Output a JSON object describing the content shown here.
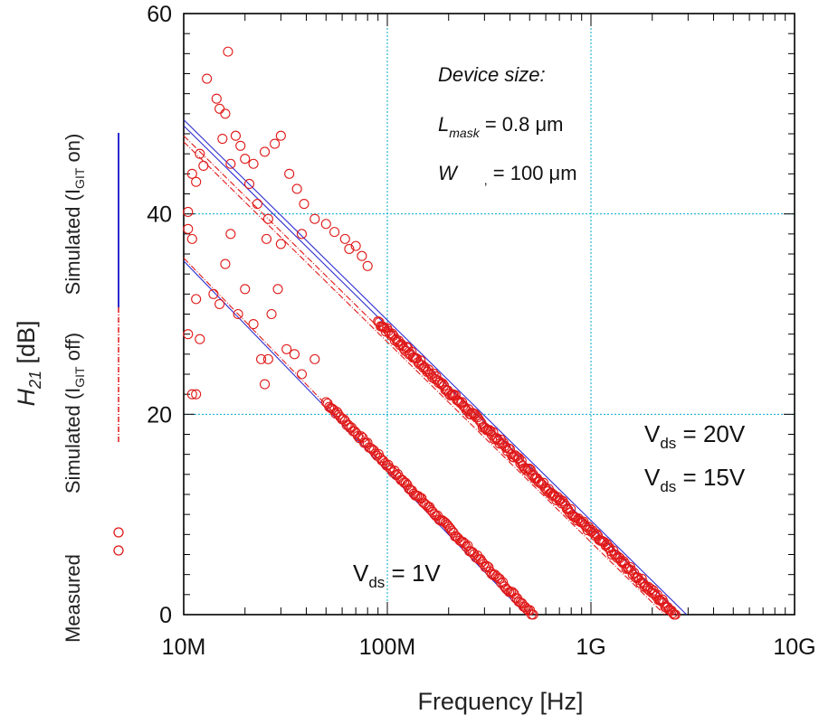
{
  "chart_data": {
    "type": "scatter",
    "x_scale": "log",
    "xlim": [
      "10M",
      "10G"
    ],
    "ylim": [
      0,
      60
    ],
    "grid": true,
    "xlabel": "Frequency [Hz]",
    "ylabel_main": "H",
    "ylabel_sub": "21",
    "ylabel_unit": "[dB]",
    "x_ticks": [
      {
        "label": "10M",
        "value": 10000000.0
      },
      {
        "label": "100M",
        "value": 100000000.0
      },
      {
        "label": "1G",
        "value": 1000000000.0
      },
      {
        "label": "10G",
        "value": 10000000000.0
      }
    ],
    "y_ticks": [
      0,
      20,
      40,
      60
    ],
    "legend": {
      "placement": "left-rotated",
      "simulated_on_prefix": "Simulated  (I",
      "simulated_on_sub": "GIT",
      "simulated_on_suffix": " on)",
      "simulated_off_prefix": "Simulated  (I",
      "simulated_off_sub": "GIT",
      "simulated_off_suffix": " off)",
      "measured": "Measured"
    },
    "annotations": {
      "device_size": "Device size:",
      "lmask_main": "L",
      "lmask_sub": "mask",
      "lmask_value": " = 0.8 μm",
      "w_main": "W",
      "w_sub": ",",
      "w_value": " = 100 μm",
      "vds20_main": "V",
      "vds20_sub": "ds",
      "vds20_value": " = 20V",
      "vds15_main": "V",
      "vds15_sub": "ds",
      "vds15_value": " = 15V",
      "vds1_main": "V",
      "vds1_sub": "ds",
      "vds1_value": " = 1V"
    },
    "colors": {
      "simulated_on": "#2b2bd0",
      "simulated_off": "#e01818",
      "measured": "#e01818",
      "grid": "#00aacc"
    },
    "series": [
      {
        "group": "Vds = 20V",
        "kind": "simulated_on",
        "x": [
          10000000.0,
          2950000000.0
        ],
        "y": [
          49.4,
          0
        ]
      },
      {
        "group": "Vds = 15V",
        "kind": "simulated_on",
        "x": [
          10000000.0,
          2740000000.0
        ],
        "y": [
          48.8,
          0
        ]
      },
      {
        "group": "Vds = 20V",
        "kind": "simulated_off",
        "x": [
          10000000.0,
          2450000000.0
        ],
        "y": [
          47.8,
          0
        ]
      },
      {
        "group": "Vds = 15V",
        "kind": "simulated_off",
        "x": [
          10000000.0,
          2300000000.0
        ],
        "y": [
          47.2,
          0
        ]
      },
      {
        "group": "Vds = 1V",
        "kind": "simulated_on",
        "x": [
          10000000.0,
          480000000.0
        ],
        "y": [
          35.3,
          0
        ]
      },
      {
        "group": "Vds = 1V",
        "kind": "simulated_off",
        "x": [
          10000000.0,
          500000000.0
        ],
        "y": [
          35.6,
          0
        ]
      }
    ],
    "measured": {
      "high_vds": {
        "trend": {
          "x": [
            10000000.0,
            2600000000.0
          ],
          "y": [
            48.4,
            0
          ]
        },
        "scatter": [
          [
            13000000.0,
            53.5
          ],
          [
            14500000.0,
            51.5
          ],
          [
            15000000.0,
            50.5
          ],
          [
            16000000.0,
            50.0
          ],
          [
            16500000.0,
            56.2
          ],
          [
            15500000.0,
            47.5
          ],
          [
            17000000.0,
            45.0
          ],
          [
            18000000.0,
            47.8
          ],
          [
            19000000.0,
            46.8
          ],
          [
            20000000.0,
            45.5
          ],
          [
            22000000.0,
            45.0
          ],
          [
            25000000.0,
            46.2
          ],
          [
            28000000.0,
            47.0
          ],
          [
            30000000.0,
            47.8
          ],
          [
            21000000.0,
            43.0
          ],
          [
            23000000.0,
            41.0
          ],
          [
            26000000.0,
            39.5
          ],
          [
            11000000.0,
            44.0
          ],
          [
            12000000.0,
            46.0
          ],
          [
            12500000.0,
            44.8
          ],
          [
            11500000.0,
            43.2
          ],
          [
            10500000.0,
            40.2
          ],
          [
            33000000.0,
            44.0
          ],
          [
            36000000.0,
            42.5
          ],
          [
            39000000.0,
            41.0
          ],
          [
            44000000.0,
            39.5
          ],
          [
            50000000.0,
            39.0
          ],
          [
            55000000.0,
            38.2
          ],
          [
            62000000.0,
            37.5
          ],
          [
            70000000.0,
            36.8
          ],
          [
            38000000.0,
            38.0
          ],
          [
            65000000.0,
            36.5
          ],
          [
            75000000.0,
            35.8
          ],
          [
            80000000.0,
            34.8
          ]
        ]
      },
      "low_vds": {
        "trend": {
          "x": [
            10000000.0,
            520000000.0
          ],
          "y": [
            35.8,
            0
          ]
        },
        "scatter": [
          [
            10500000.0,
            38.5
          ],
          [
            11000000.0,
            37.5
          ],
          [
            11500000.0,
            31.5
          ],
          [
            12000000.0,
            27.5
          ],
          [
            10500000.0,
            28.0
          ],
          [
            11000000.0,
            22.0
          ],
          [
            11500000.0,
            22.0
          ],
          [
            14000000.0,
            32.0
          ],
          [
            15000000.0,
            31.0
          ],
          [
            16000000.0,
            35.0
          ],
          [
            17000000.0,
            38.0
          ],
          [
            18500000.0,
            30.0
          ],
          [
            20000000.0,
            32.5
          ],
          [
            22000000.0,
            29.0
          ],
          [
            24000000.0,
            25.5
          ],
          [
            25000000.0,
            23.0
          ],
          [
            26000000.0,
            25.5
          ],
          [
            27000000.0,
            30.0
          ],
          [
            29000000.0,
            32.5
          ],
          [
            32000000.0,
            26.5
          ],
          [
            35000000.0,
            26.0
          ],
          [
            38000000.0,
            24.0
          ],
          [
            44000000.0,
            25.5
          ],
          [
            30000000.0,
            37.0
          ],
          [
            25500000.0,
            37.5
          ]
        ]
      }
    }
  }
}
